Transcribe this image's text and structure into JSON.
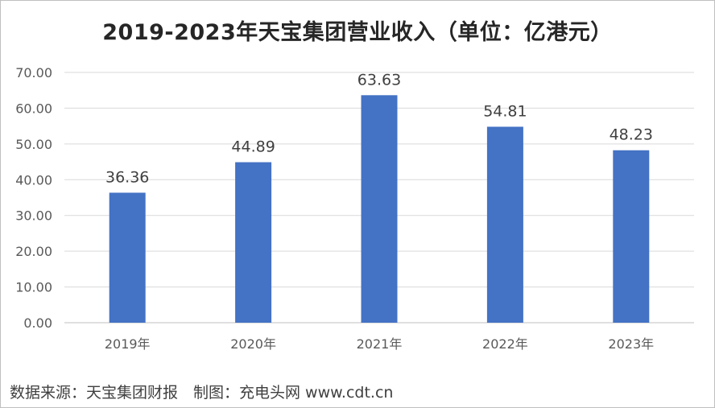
{
  "title": "2019-2023年天宝集团营业收入（单位：亿港元）",
  "source_note": "数据来源：天宝集团财报　制图：充电头网 www.cdt.cn",
  "chart_data": {
    "type": "bar",
    "title": "2019-2023年天宝集团营业收入（单位：亿港元）",
    "categories": [
      "2019年",
      "2020年",
      "2021年",
      "2022年",
      "2023年"
    ],
    "series": [
      {
        "values": [
          36.36,
          44.89,
          63.63,
          54.81,
          48.23
        ]
      }
    ],
    "data_labels": [
      "36.36",
      "44.89",
      "63.63",
      "54.81",
      "48.23"
    ],
    "y_ticks": [
      "0.00",
      "10.00",
      "20.00",
      "30.00",
      "40.00",
      "50.00",
      "60.00",
      "70.00"
    ],
    "ylim": [
      0,
      70
    ],
    "xlabel": "",
    "ylabel": "",
    "grid": true,
    "legend": "none",
    "bar_color": "#4472C4",
    "grid_color": "#d9d9d9"
  }
}
